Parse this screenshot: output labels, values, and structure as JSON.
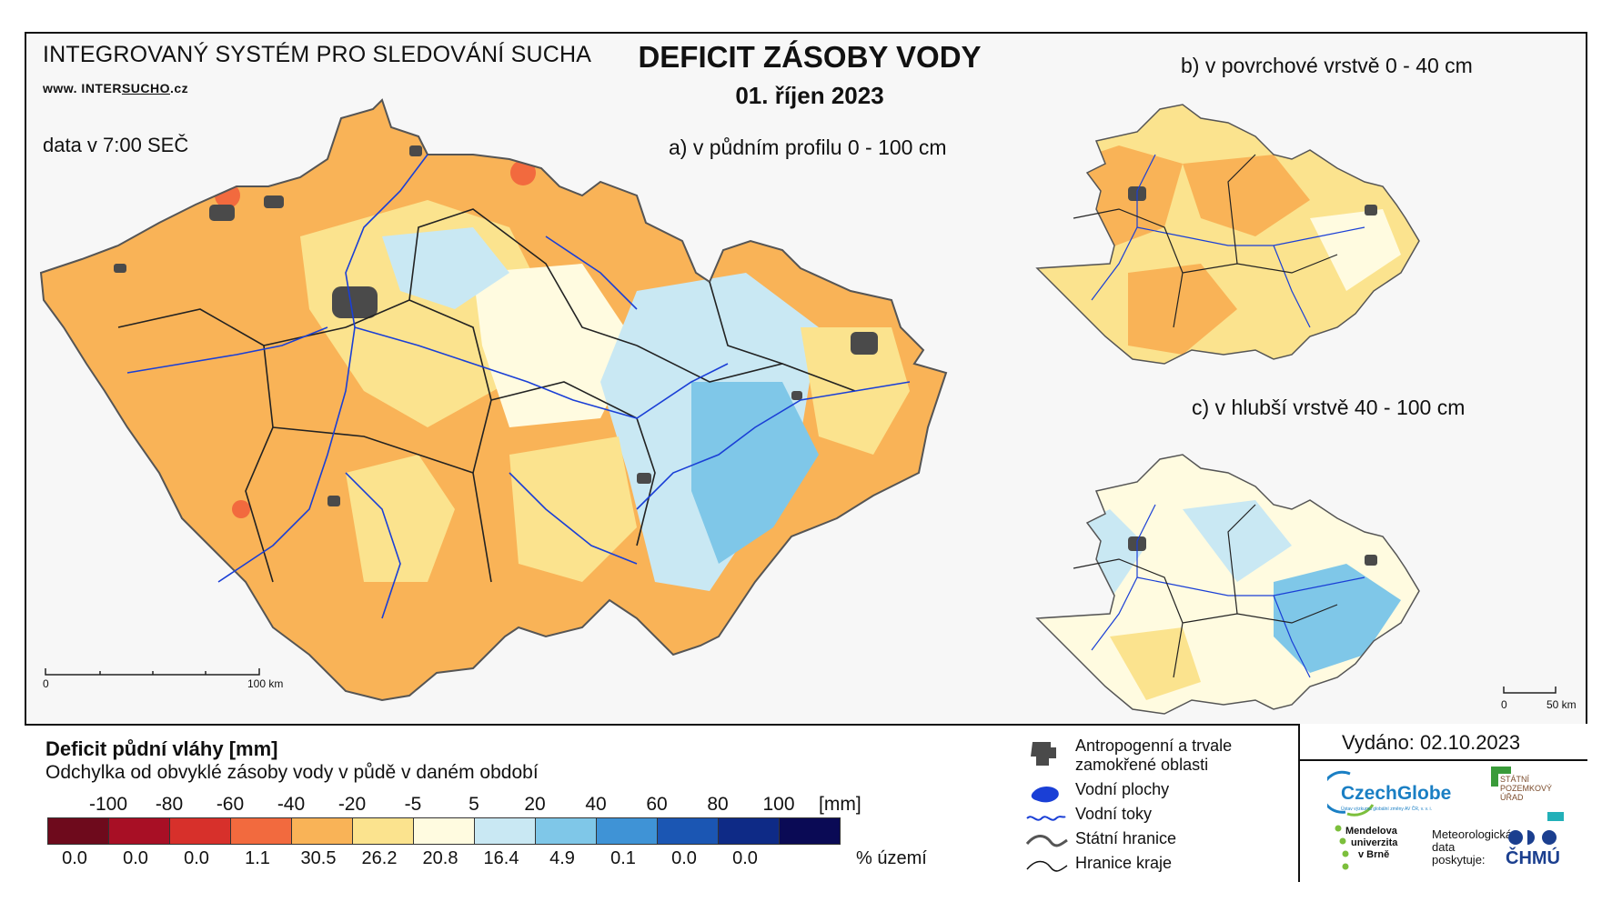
{
  "header": {
    "system_title": "INTEGROVANÝ SYSTÉM PRO SLEDOVÁNÍ SUCHA",
    "website_prefix": "www. INTER",
    "website_highlight": "SUCHO",
    "website_suffix": ".cz",
    "data_time": "data v 7:00 SEČ",
    "main_title": "DEFICIT ZÁSOBY VODY",
    "date": "01. říjen 2023"
  },
  "maps": {
    "a_label": "a) v půdním profilu 0 - 100 cm",
    "b_label": "b) v povrchové vrstvě 0 - 40 cm",
    "c_label": "c) v hlubší vrstvě 40 - 100 cm",
    "scale_main_zero": "0",
    "scale_main_end": "100 km",
    "scale_small_zero": "0",
    "scale_small_end": "50 km"
  },
  "legend": {
    "title": "Deficit půdní vláhy  [mm]",
    "subtitle": "Odchylka od obvyklé zásoby vody v půdě v daném období",
    "ticks": [
      "-100",
      "-80",
      "-60",
      "-40",
      "-20",
      "-5",
      "5",
      "20",
      "40",
      "60",
      "80",
      "100"
    ],
    "unit": "[mm]",
    "colors": [
      "#6e0a1c",
      "#a80f25",
      "#d7302b",
      "#f26a3e",
      "#f9b357",
      "#fbe38e",
      "#fffbe0",
      "#c9e8f3",
      "#7fc7e8",
      "#3f93d6",
      "#1b56b3",
      "#0e2a86",
      "#0a0a55"
    ],
    "percents": [
      "0.0",
      "0.0",
      "0.0",
      "1.1",
      "30.5",
      "26.2",
      "20.8",
      "16.4",
      "4.9",
      "0.1",
      "0.0",
      "0.0"
    ],
    "percent_label": "% území"
  },
  "symbols": {
    "urban_line1": "Antropogenní a trvale",
    "urban_line2": "zamokřené oblasti",
    "water_bodies": "Vodní plochy",
    "rivers": "Vodní toky",
    "state_border": "Státní hranice",
    "region_border": "Hranice kraje",
    "urban_color": "#4a4a4a",
    "water_color": "#1a3fd6"
  },
  "issued": "Vydáno: 02.10.2023",
  "logos": {
    "czechglobe": "CzechGlobe",
    "czechglobe_sub": "Ústav výzkumu globální změny AV ČR, v. v. i.",
    "spu_line1": "STÁTNÍ",
    "spu_line2": "POZEMKOVÝ",
    "spu_line3": "ÚŘAD",
    "mendel_line1": "Mendelova",
    "mendel_line2": "univerzita",
    "mendel_line3": "v Brně",
    "provider_line1": "Meteorologická",
    "provider_line2": "data",
    "provider_line3": "poskytuje:",
    "chmu": "ČHMÚ"
  }
}
